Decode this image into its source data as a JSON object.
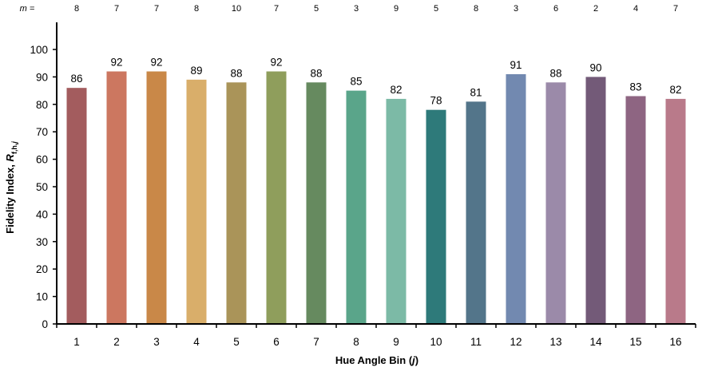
{
  "chart_data": {
    "type": "bar",
    "categories": [
      "1",
      "2",
      "3",
      "4",
      "5",
      "6",
      "7",
      "8",
      "9",
      "10",
      "11",
      "12",
      "13",
      "14",
      "15",
      "16"
    ],
    "values": [
      86,
      92,
      92,
      89,
      88,
      92,
      88,
      85,
      82,
      78,
      81,
      91,
      88,
      90,
      83,
      82
    ],
    "m_prefix": "m =",
    "m_values": [
      8,
      7,
      7,
      8,
      10,
      7,
      5,
      3,
      9,
      5,
      8,
      3,
      6,
      2,
      4,
      7
    ],
    "bar_colors": [
      "#a35c5e",
      "#cc7760",
      "#c98848",
      "#d9ae6a",
      "#aa9459",
      "#8f9e5c",
      "#668a5f",
      "#5aa58a",
      "#7cbaa6",
      "#2e7a7a",
      "#53758a",
      "#7289b0",
      "#9b8aa9",
      "#735a78",
      "#8e6582",
      "#b97a8a"
    ],
    "xlabel": "Hue Angle Bin (j)",
    "ylabel": "Fidelity Index, Rf,h,j",
    "ylim": [
      0,
      100
    ],
    "yticks": [
      0,
      10,
      20,
      30,
      40,
      50,
      60,
      70,
      80,
      90,
      100
    ],
    "grid": false
  }
}
